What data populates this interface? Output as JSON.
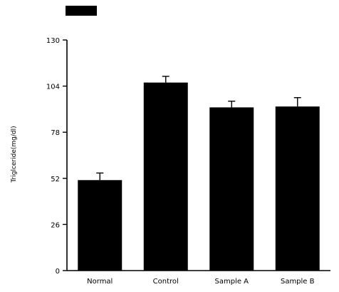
{
  "chart_data": {
    "type": "bar",
    "title": "",
    "xlabel": "",
    "ylabel": "Triglceride(mg/dl)",
    "categories": [
      "Normal",
      "Control",
      "Sample  A",
      "Sample  B"
    ],
    "series": [
      {
        "values": [
          51,
          106,
          92,
          92.5
        ],
        "errors": [
          4,
          3.5,
          3.5,
          5
        ]
      }
    ],
    "ylim": [
      0,
      130
    ],
    "yticks": [
      0,
      26,
      52,
      78,
      104,
      130
    ],
    "grid": false,
    "legend": "top-left",
    "colors": {
      "bar": "#000000",
      "axis": "#000000"
    }
  }
}
